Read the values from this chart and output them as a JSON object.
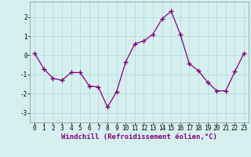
{
  "x": [
    0,
    1,
    2,
    3,
    4,
    5,
    6,
    7,
    8,
    9,
    10,
    11,
    12,
    13,
    14,
    15,
    16,
    17,
    18,
    19,
    20,
    21,
    22,
    23
  ],
  "y": [
    0.1,
    -0.7,
    -1.2,
    -1.3,
    -0.9,
    -0.9,
    -1.6,
    -1.65,
    -2.7,
    -1.9,
    -0.35,
    0.6,
    0.75,
    1.1,
    1.9,
    2.3,
    1.1,
    -0.45,
    -0.8,
    -1.4,
    -1.85,
    -1.85,
    -0.85,
    0.1
  ],
  "line_color": "#800080",
  "marker": "+",
  "marker_size": 4,
  "background_color": "#d6f0f0",
  "grid_color": "#b8dada",
  "xlabel": "Windchill (Refroidissement éolien,°C)",
  "ylabel": "",
  "ylim": [
    -3.5,
    2.8
  ],
  "xlim": [
    -0.5,
    23.5
  ],
  "yticks": [
    -3,
    -2,
    -1,
    0,
    1,
    2
  ],
  "xticks": [
    0,
    1,
    2,
    3,
    4,
    5,
    6,
    7,
    8,
    9,
    10,
    11,
    12,
    13,
    14,
    15,
    16,
    17,
    18,
    19,
    20,
    21,
    22,
    23
  ],
  "label_fontsize": 6.5,
  "tick_fontsize": 5.5,
  "monospace_font": "monospace"
}
